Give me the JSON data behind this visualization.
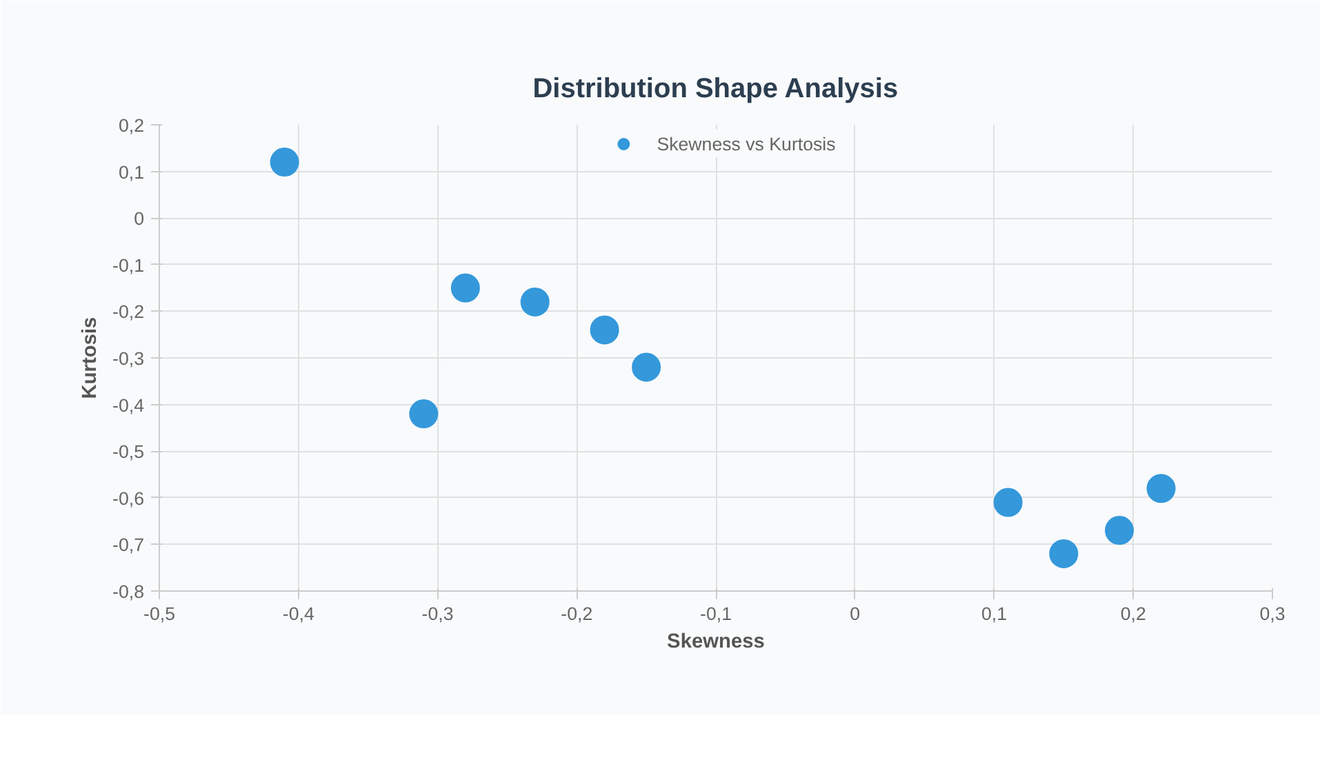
{
  "chart_data": {
    "type": "scatter",
    "title": "Distribution Shape Analysis",
    "xlabel": "Skewness",
    "ylabel": "Kurtosis",
    "x": [
      -0.41,
      -0.31,
      -0.28,
      -0.23,
      -0.18,
      -0.15,
      0.11,
      0.15,
      0.19,
      0.22
    ],
    "series": [
      {
        "name": "Skewness vs Kurtosis",
        "color": "#3498db",
        "values": [
          0.12,
          -0.42,
          -0.15,
          -0.18,
          -0.24,
          -0.32,
          -0.61,
          -0.72,
          -0.67,
          -0.58
        ]
      }
    ],
    "xlim": [
      -0.5,
      0.3
    ],
    "xticks": [
      {
        "value": -0.5,
        "label": "-0,5"
      },
      {
        "value": -0.4,
        "label": "-0,4"
      },
      {
        "value": -0.3,
        "label": "-0,3"
      },
      {
        "value": -0.2,
        "label": "-0,2"
      },
      {
        "value": -0.1,
        "label": "-0,1"
      },
      0,
      {
        "value": 0.1,
        "label": "0,1"
      },
      {
        "value": 0.2,
        "label": "0,2"
      },
      {
        "value": 0.3,
        "label": "0,3"
      }
    ],
    "ylim": [
      -0.8,
      0.2
    ],
    "yticks": [
      {
        "value": -0.8,
        "label": "-0,8"
      },
      {
        "value": -0.7,
        "label": "-0,7"
      },
      {
        "value": -0.6,
        "label": "-0,6"
      },
      {
        "value": -0.5,
        "label": "-0,5"
      },
      {
        "value": -0.4,
        "label": "-0,4"
      },
      {
        "value": -0.3,
        "label": "-0,3"
      },
      {
        "value": -0.2,
        "label": "-0,2"
      },
      {
        "value": -0.1,
        "label": "-0,1"
      },
      0,
      {
        "value": 0.1,
        "label": "0,1"
      },
      {
        "value": 0.2,
        "label": "0,2"
      }
    ],
    "grid": true,
    "legend": "top",
    "marker": "circle"
  }
}
